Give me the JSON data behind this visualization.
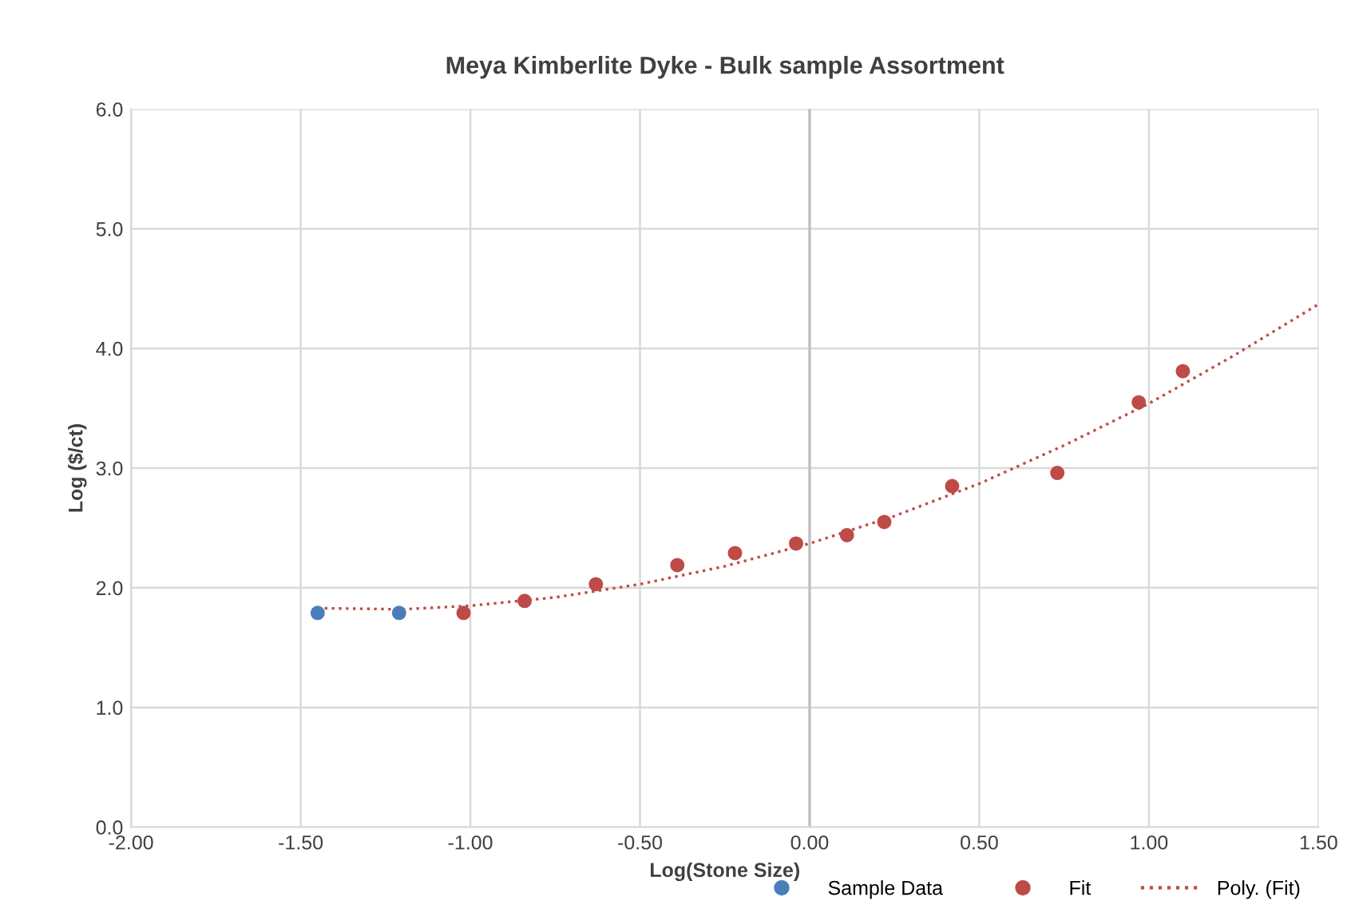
{
  "chart_data": {
    "type": "scatter",
    "title": "Meya Kimberlite Dyke - Bulk sample Assortment",
    "xlabel": "Log(Stone Size)",
    "ylabel": "Log ($/ct)",
    "xlim": [
      -2,
      1.5
    ],
    "ylim": [
      0,
      6
    ],
    "xticks": [
      {
        "value": -2,
        "label": "-2.00"
      },
      {
        "value": -1.5,
        "label": "-1.50"
      },
      {
        "value": -1,
        "label": "-1.00"
      },
      {
        "value": -0.5,
        "label": "-0.50"
      },
      {
        "value": 0,
        "label": "0.00"
      },
      {
        "value": 0.5,
        "label": "0.50"
      },
      {
        "value": 1,
        "label": "1.00"
      },
      {
        "value": 1.5,
        "label": "1.50"
      }
    ],
    "yticks": [
      {
        "value": 0,
        "label": "0.0"
      },
      {
        "value": 1,
        "label": "1.0"
      },
      {
        "value": 2,
        "label": "2.0"
      },
      {
        "value": 3,
        "label": "3.0"
      },
      {
        "value": 4,
        "label": "4.0"
      },
      {
        "value": 5,
        "label": "5.0"
      },
      {
        "value": 6,
        "label": "6.0"
      }
    ],
    "grid": true,
    "legend": "bottom right",
    "marker": "circle",
    "series": [
      {
        "name": "Sample Data",
        "color": "#4a7ebb",
        "x": [
          -1.45,
          -1.21
        ],
        "values": [
          1.79,
          1.79
        ]
      },
      {
        "name": "Fit",
        "color": "#be4b48",
        "x": [
          -1.02,
          -0.84,
          -0.63,
          -0.39,
          -0.22,
          -0.04,
          0.11,
          0.22,
          0.42,
          0.73,
          0.97,
          1.1
        ],
        "values": [
          1.79,
          1.89,
          2.03,
          2.19,
          2.29,
          2.37,
          2.44,
          2.55,
          2.85,
          2.96,
          3.55,
          3.81
        ]
      },
      {
        "name": "Poly. (Fit)",
        "type": "line",
        "line_style": "dotted",
        "marker": "none",
        "color": "#be4b48",
        "x": [
          -1.45,
          -1.2,
          -1.0,
          -0.75,
          -0.5,
          -0.25,
          0,
          0.25,
          0.5,
          0.75,
          1.0,
          1.25,
          1.5
        ],
        "values": [
          1.83,
          1.82,
          1.85,
          1.92,
          2.03,
          2.18,
          2.37,
          2.6,
          2.87,
          3.19,
          3.54,
          3.94,
          4.37
        ]
      }
    ]
  }
}
